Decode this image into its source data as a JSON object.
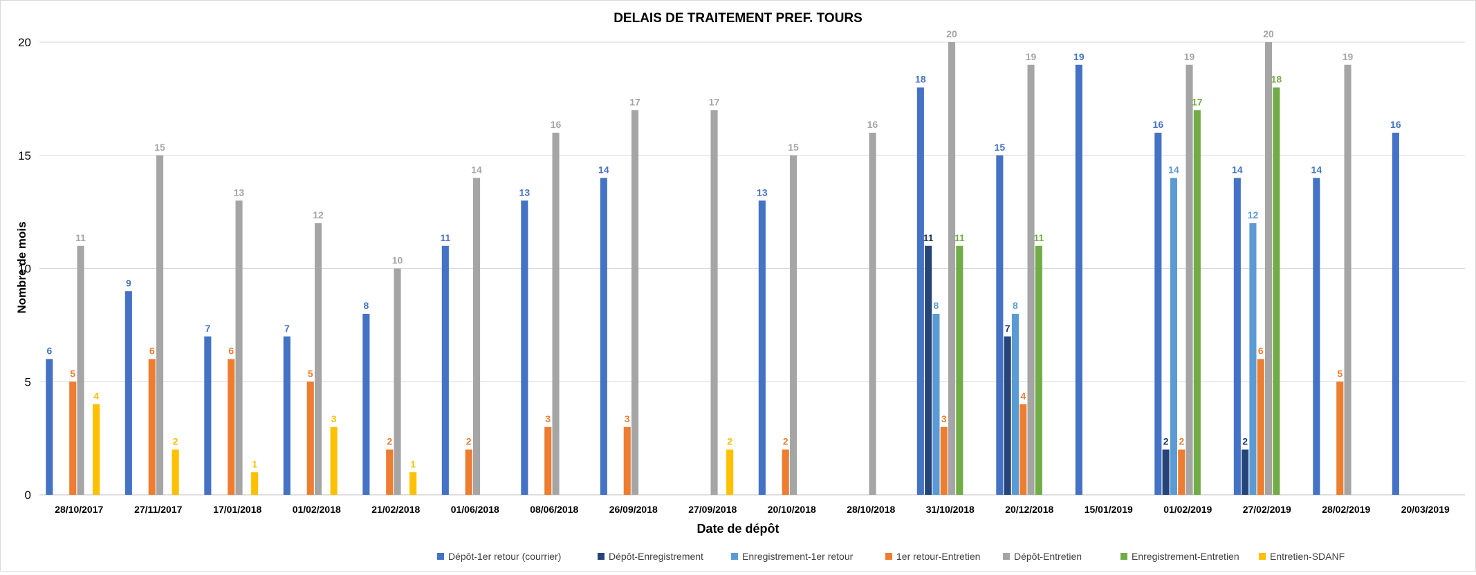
{
  "chart_data": {
    "type": "bar",
    "title": "DELAIS DE TRAITEMENT PREF. TOURS",
    "xlabel": "Date de dépôt",
    "ylabel": "Nombre de mois",
    "ylim": [
      0,
      20
    ],
    "yticks": [
      0,
      5,
      10,
      15,
      20
    ],
    "grid": true,
    "legend_position": "bottom",
    "categories": [
      "28/10/2017",
      "27/11/2017",
      "17/01/2018",
      "01/02/2018",
      "21/02/2018",
      "01/06/2018",
      "08/06/2018",
      "26/09/2018",
      "27/09/2018",
      "20/10/2018",
      "28/10/2018",
      "31/10/2018",
      "20/12/2018",
      "15/01/2019",
      "01/02/2019",
      "27/02/2019",
      "28/02/2019",
      "20/03/2019"
    ],
    "series": [
      {
        "name": "Dépôt-1er retour (courrier)",
        "color": "#4472C4",
        "label_color": "#4472C4",
        "values": [
          6,
          9,
          7,
          7,
          8,
          11,
          13,
          14,
          null,
          13,
          null,
          18,
          15,
          19,
          16,
          14,
          14,
          16
        ]
      },
      {
        "name": "Dépôt-Enregistrement",
        "color": "#264478",
        "label_color": "#1F3864",
        "values": [
          null,
          null,
          null,
          null,
          null,
          null,
          null,
          null,
          null,
          null,
          null,
          11,
          7,
          null,
          2,
          2,
          null,
          null
        ]
      },
      {
        "name": "Enregistrement-1er retour",
        "color": "#5B9BD5",
        "label_color": "#5B9BD5",
        "values": [
          null,
          null,
          null,
          null,
          null,
          null,
          null,
          null,
          null,
          null,
          null,
          8,
          8,
          null,
          14,
          12,
          null,
          null
        ]
      },
      {
        "name": "1er retour-Entretien",
        "color": "#ED7D31",
        "label_color": "#ED7D31",
        "values": [
          5,
          6,
          6,
          5,
          2,
          2,
          3,
          3,
          null,
          2,
          null,
          3,
          4,
          null,
          2,
          6,
          5,
          null
        ]
      },
      {
        "name": "Dépôt-Entretien",
        "color": "#A5A5A5",
        "label_color": "#A5A5A5",
        "values": [
          11,
          15,
          13,
          12,
          10,
          14,
          16,
          17,
          17,
          15,
          16,
          20,
          19,
          null,
          19,
          20,
          19,
          null
        ]
      },
      {
        "name": "Enregistrement-Entretien",
        "color": "#70AD47",
        "label_color": "#70AD47",
        "values": [
          null,
          null,
          null,
          null,
          null,
          null,
          null,
          null,
          null,
          null,
          null,
          11,
          11,
          null,
          17,
          18,
          null,
          null
        ]
      },
      {
        "name": "Entretien-SDANF",
        "color": "#FFC000",
        "label_color": "#FFC000",
        "values": [
          4,
          2,
          1,
          3,
          1,
          null,
          null,
          null,
          2,
          null,
          null,
          null,
          null,
          null,
          null,
          null,
          null,
          null
        ]
      }
    ]
  }
}
